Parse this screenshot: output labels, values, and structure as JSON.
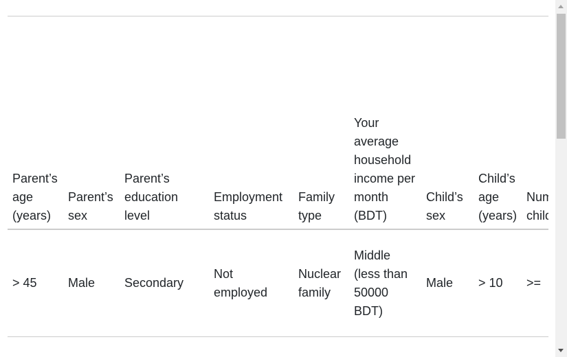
{
  "table": {
    "columns": [
      "Parent’s age (years)",
      "Parent’s sex",
      "Parent’s education level",
      "Employment status",
      "Family type",
      "Your average household income per month (BDT)",
      "Child’s sex",
      "Child’s age (years)",
      "Number of children"
    ],
    "rows": [
      [
        "> 45",
        "Male",
        "Secondary",
        "Not employed",
        "Nuclear family",
        "Middle (less than 50000 BDT)",
        "Male",
        "> 10",
        ">="
      ]
    ]
  }
}
